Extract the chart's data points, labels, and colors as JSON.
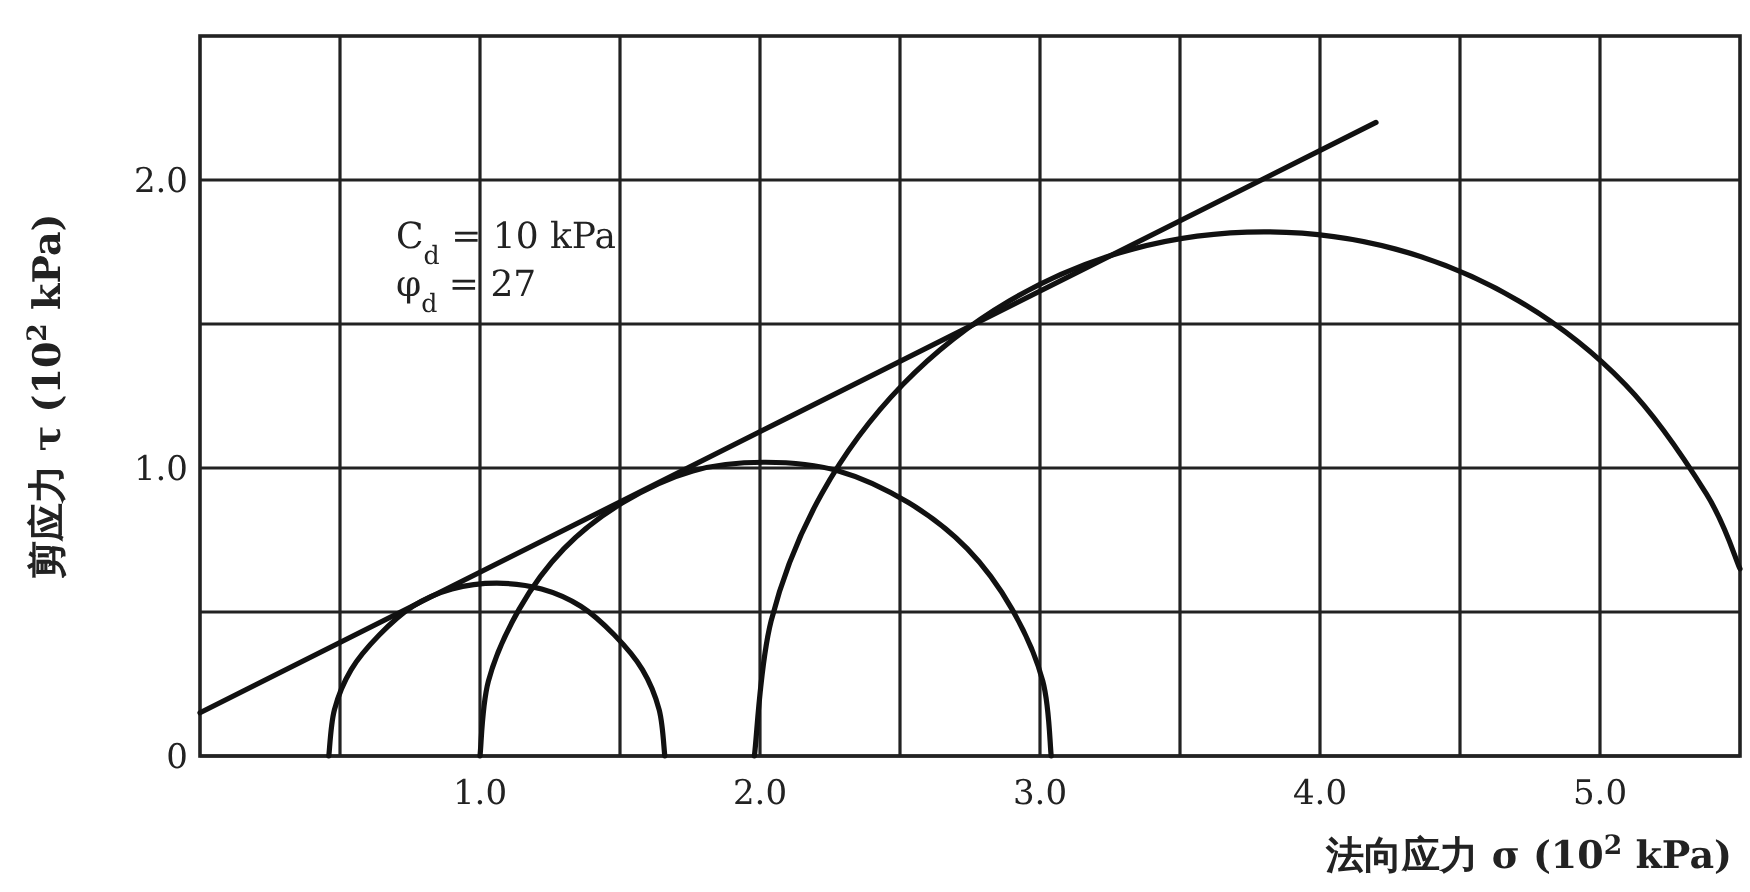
{
  "chart_data": {
    "type": "line",
    "xlabel": "法向应力 σ (10$^{2}$ kPa)",
    "ylabel": "剪应力 τ (10$^{2}$ kPa)",
    "xlim": [
      0,
      5.5
    ],
    "ylim": [
      0,
      2.5
    ],
    "xticks": [
      {
        "value": 0.5,
        "label": null
      },
      {
        "value": 1,
        "label": "1.0"
      },
      {
        "value": 1.5,
        "label": null
      },
      {
        "value": 2,
        "label": "2.0"
      },
      {
        "value": 2.5,
        "label": null
      },
      {
        "value": 3,
        "label": "3.0"
      },
      {
        "value": 3.5,
        "label": null
      },
      {
        "value": 4,
        "label": "4.0"
      },
      {
        "value": 4.5,
        "label": null
      },
      {
        "value": 5,
        "label": "5.0"
      }
    ],
    "yticks": [
      0,
      {
        "value": 0.5,
        "label": null
      },
      {
        "value": 1,
        "label": "1.0"
      },
      {
        "value": 1.5,
        "label": null
      },
      {
        "value": 2,
        "label": "2.0"
      }
    ],
    "grid": true,
    "annotations": [
      "C$_{d}$ = 10 kPa",
      "φ$_{d}$ = 27"
    ],
    "series": [
      {
        "color": "#111111",
        "x": [
          0,
          4.2
        ],
        "values": [
          0.15,
          2.2
        ]
      },
      {
        "color": "#111111",
        "x": [
          0.46,
          0.48,
          0.54,
          0.64,
          0.76,
          0.9,
          1.06,
          1.22,
          1.36,
          1.48,
          1.58,
          1.64,
          1.66
        ],
        "values": [
          0,
          0.16,
          0.3,
          0.42,
          0.52,
          0.58,
          0.6,
          0.58,
          0.52,
          0.42,
          0.3,
          0.16,
          0
        ]
      },
      {
        "color": "#111111",
        "x": [
          1.0,
          1.03,
          1.14,
          1.3,
          1.51,
          1.76,
          2.02,
          2.28,
          2.53,
          2.74,
          2.9,
          3.01,
          3.04
        ],
        "values": [
          0,
          0.26,
          0.51,
          0.72,
          0.88,
          0.99,
          1.02,
          0.99,
          0.88,
          0.72,
          0.51,
          0.26,
          0
        ]
      },
      {
        "color": "#111111",
        "x": [
          1.98,
          2.04,
          2.22,
          2.51,
          2.89,
          3.33,
          3.8,
          4.27,
          4.71,
          5.09,
          5.38,
          5.5
        ],
        "values": [
          0,
          0.47,
          0.91,
          1.29,
          1.58,
          1.76,
          1.82,
          1.76,
          1.58,
          1.29,
          0.91,
          0.65
        ]
      }
    ]
  }
}
